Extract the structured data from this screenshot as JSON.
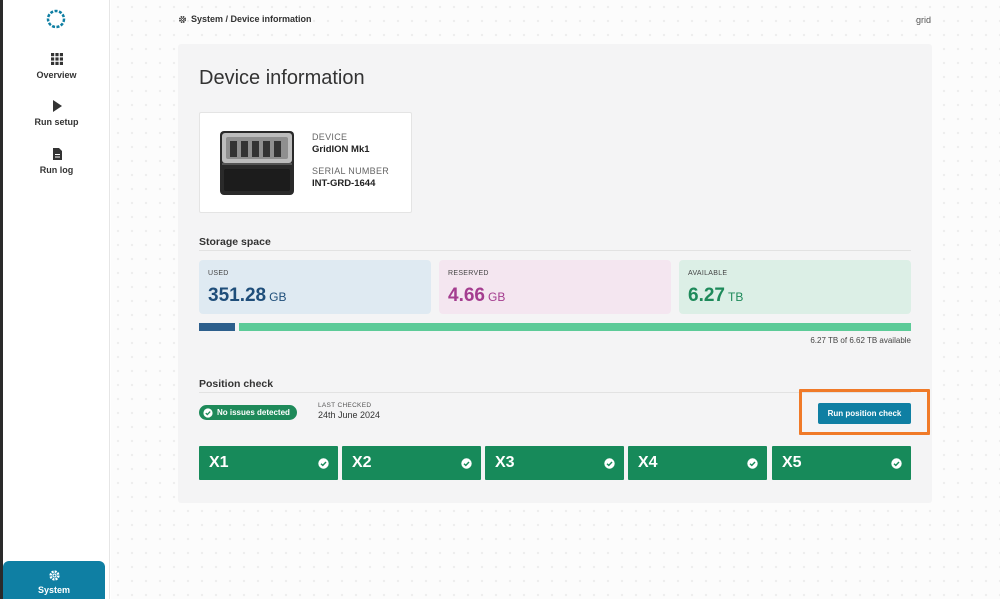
{
  "sidebar": {
    "items": [
      {
        "label": "Overview",
        "icon": "grid-icon"
      },
      {
        "label": "Run setup",
        "icon": "play-icon"
      },
      {
        "label": "Run log",
        "icon": "document-icon"
      }
    ],
    "system_label": "System",
    "system_icon": "gear-icon"
  },
  "header": {
    "breadcrumb": "System / Device information",
    "user": "grid"
  },
  "page": {
    "title": "Device information"
  },
  "device": {
    "device_label": "DEVICE",
    "device_value": "GridION Mk1",
    "serial_label": "SERIAL NUMBER",
    "serial_value": "INT-GRD-1644"
  },
  "storage": {
    "title": "Storage space",
    "used": {
      "label": "USED",
      "value": "351.28",
      "unit": "GB"
    },
    "reserved": {
      "label": "RESERVED",
      "value": "4.66",
      "unit": "GB"
    },
    "available": {
      "label": "AVAILABLE",
      "value": "6.27",
      "unit": "TB"
    },
    "summary": "6.27 TB of 6.62 TB available",
    "used_fraction": 0.053
  },
  "position_check": {
    "title": "Position check",
    "status": "No issues detected",
    "last_checked_label": "LAST CHECKED",
    "last_checked_value": "24th June 2024",
    "button_label": "Run position check",
    "positions": [
      "X1",
      "X2",
      "X3",
      "X4",
      "X5"
    ]
  },
  "colors": {
    "accent": "#0f7fa3",
    "success": "#178a5a",
    "highlight": "#f07a28",
    "used_text": "#1f4e7a",
    "reserved_text": "#a43d8f",
    "available_text": "#1e8a5a"
  }
}
